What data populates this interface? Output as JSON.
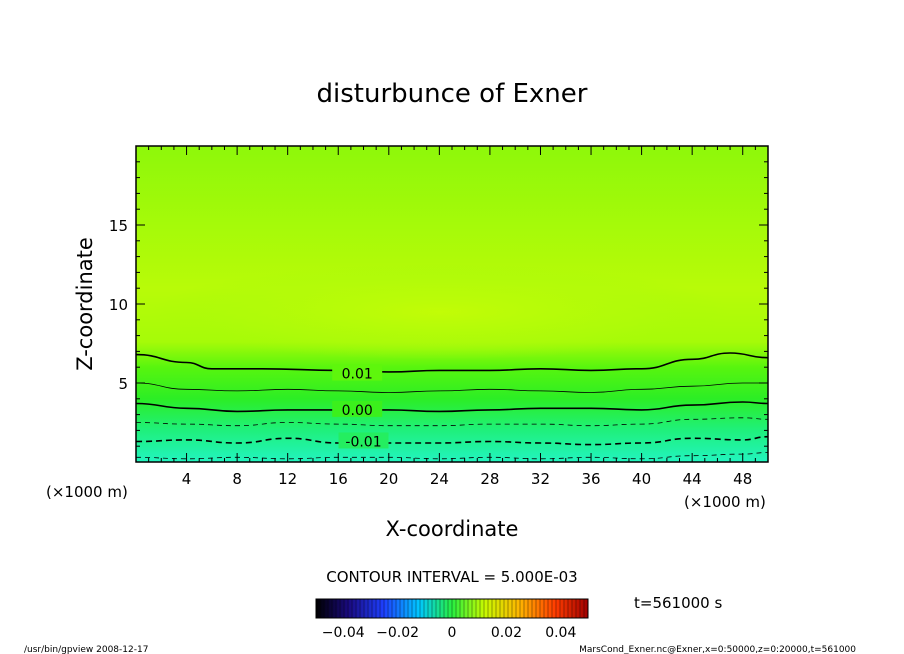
{
  "chart_data": {
    "type": "contour",
    "title": "disturbunce of Exner",
    "xlabel": "X-coordinate",
    "ylabel": "Z-coordinate",
    "x_unit": "(×1000 m)",
    "y_unit": "(×1000 m)",
    "xlim": [
      0,
      50
    ],
    "ylim": [
      0,
      20
    ],
    "x_ticks_major": [
      4,
      8,
      12,
      16,
      20,
      24,
      28,
      32,
      36,
      40,
      44,
      48
    ],
    "y_ticks_major": [
      5,
      10,
      15
    ],
    "contour_interval_label": "CONTOUR INTERVAL = 5.000E-03",
    "contour_labels": [
      {
        "text": "0.01",
        "x": 17.5,
        "y": 5.6
      },
      {
        "text": "0.00",
        "x": 17.5,
        "y": 3.3
      },
      {
        "text": "-0.01",
        "x": 18.0,
        "y": 1.3
      }
    ],
    "contour_lines": [
      {
        "level": 0.01,
        "style": "solid-thick",
        "x": [
          0,
          4,
          6,
          10,
          16,
          20,
          24,
          28,
          32,
          36,
          40,
          44,
          47,
          50
        ],
        "y": [
          6.8,
          6.3,
          5.9,
          5.9,
          5.8,
          5.7,
          5.8,
          5.8,
          5.9,
          5.8,
          5.9,
          6.5,
          6.9,
          6.6
        ]
      },
      {
        "level": 0.005,
        "style": "solid-thin",
        "x": [
          0,
          4,
          8,
          12,
          16,
          20,
          24,
          28,
          32,
          36,
          40,
          44,
          48,
          50
        ],
        "y": [
          5.0,
          4.6,
          4.5,
          4.6,
          4.5,
          4.4,
          4.5,
          4.6,
          4.5,
          4.4,
          4.6,
          4.8,
          5.0,
          5.0
        ]
      },
      {
        "level": 0.0,
        "style": "solid-thick",
        "x": [
          0,
          4,
          8,
          12,
          16,
          20,
          24,
          28,
          32,
          36,
          40,
          44,
          48,
          50
        ],
        "y": [
          3.7,
          3.4,
          3.2,
          3.3,
          3.3,
          3.3,
          3.2,
          3.3,
          3.4,
          3.4,
          3.3,
          3.6,
          3.8,
          3.7
        ]
      },
      {
        "level": -0.005,
        "style": "dashed-thin",
        "x": [
          0,
          4,
          8,
          12,
          16,
          20,
          24,
          28,
          32,
          36,
          40,
          44,
          48,
          50
        ],
        "y": [
          2.5,
          2.4,
          2.3,
          2.5,
          2.4,
          2.3,
          2.3,
          2.4,
          2.4,
          2.3,
          2.4,
          2.7,
          2.8,
          2.7
        ]
      },
      {
        "level": -0.01,
        "style": "dashed-thick",
        "x": [
          0,
          4,
          8,
          12,
          16,
          20,
          24,
          28,
          32,
          36,
          40,
          44,
          48,
          50
        ],
        "y": [
          1.3,
          1.4,
          1.2,
          1.5,
          1.2,
          1.2,
          1.2,
          1.3,
          1.2,
          1.1,
          1.2,
          1.5,
          1.4,
          1.6
        ]
      },
      {
        "level": -0.015,
        "style": "dashed-thin",
        "x": [
          0,
          4,
          8,
          12,
          16,
          20,
          24,
          28,
          32,
          36,
          40,
          44,
          48,
          50
        ],
        "y": [
          0.3,
          0.2,
          0.3,
          0.2,
          0.3,
          0.3,
          0.2,
          0.3,
          0.2,
          0.3,
          0.2,
          0.4,
          0.5,
          0.6
        ]
      }
    ],
    "colorbar": {
      "tick_labels": [
        "-0.04",
        "-0.02",
        "0",
        "0.02",
        "0.04"
      ],
      "range": [
        -0.05,
        0.05
      ]
    },
    "time_label": "t=561000  s"
  },
  "footer": {
    "left": "/usr/bin/gpview  2008-12-17",
    "right": "MarsCond_Exner.nc@Exner,x=0:50000,z=0:20000,t=561000"
  },
  "colors": {
    "fill_top": "#8ef80a",
    "fill_mid": "#b8fb08",
    "fill_bottom": "#22f4b5",
    "frame": "#000000"
  }
}
